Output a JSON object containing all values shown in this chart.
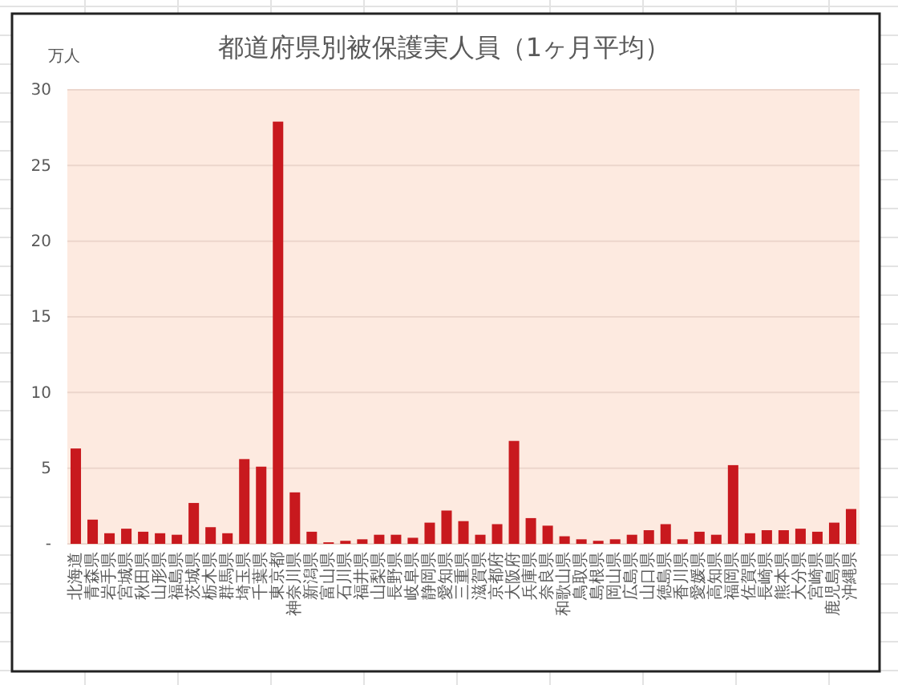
{
  "chart_data": {
    "type": "bar",
    "title": "都道府県別被保護実人員（1ヶ月平均）",
    "ylabel": "万人",
    "categories": [
      "北海道",
      "青森県",
      "岩手県",
      "宮城県",
      "秋田県",
      "山形県",
      "福島県",
      "茨城県",
      "栃木県",
      "群馬県",
      "埼玉県",
      "千葉県",
      "東京都",
      "神奈川県",
      "新潟県",
      "富山県",
      "石川県",
      "福井県",
      "山梨県",
      "長野県",
      "岐阜県",
      "静岡県",
      "愛知県",
      "三重県",
      "滋賀県",
      "京都府",
      "大阪府",
      "兵庫県",
      "奈良県",
      "和歌山県",
      "鳥取県",
      "島根県",
      "岡山県",
      "広島県",
      "山口県",
      "徳島県",
      "香川県",
      "愛媛県",
      "高知県",
      "福岡県",
      "佐賀県",
      "長崎県",
      "熊本県",
      "大分県",
      "宮崎県",
      "鹿児島県",
      "沖縄県"
    ],
    "values": [
      6.3,
      1.6,
      0.7,
      1.0,
      0.8,
      0.7,
      0.6,
      2.7,
      1.1,
      0.7,
      5.6,
      5.1,
      27.9,
      3.4,
      0.8,
      0.1,
      0.2,
      0.3,
      0.6,
      0.6,
      0.4,
      1.4,
      2.2,
      1.5,
      0.6,
      1.3,
      6.8,
      1.7,
      1.2,
      0.5,
      0.3,
      0.2,
      0.3,
      0.6,
      0.9,
      1.3,
      0.3,
      0.8,
      0.6,
      5.2,
      0.7,
      0.9,
      0.9,
      1.0,
      0.8,
      1.4,
      2.3
    ],
    "color": "#c8191e",
    "ylim": [
      0,
      30
    ],
    "yticks": [
      {
        "value": 0,
        "label": "-"
      },
      5,
      10,
      15,
      20,
      25,
      30
    ],
    "grid": true
  }
}
